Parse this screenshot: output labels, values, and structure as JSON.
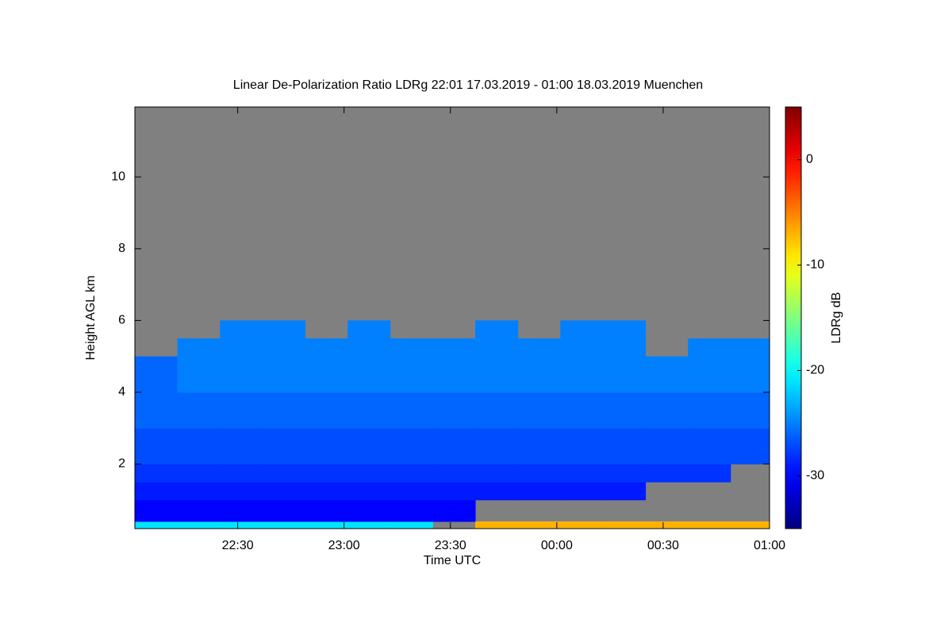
{
  "chart_data": {
    "type": "heatmap",
    "title": "Linear De-Polarization Ratio LDRg   22:01 17.03.2019 - 01:00 18.03.2019 Muenchen",
    "x_label": "Time UTC",
    "y_label": "Height AGL km",
    "colorbar_label": "LDRg dB",
    "xlim": [
      1,
      180
    ],
    "xticks": [
      {
        "value": 30,
        "label": "22:30"
      },
      {
        "value": 60,
        "label": "23:00"
      },
      {
        "value": 90,
        "label": "23:30"
      },
      {
        "value": 120,
        "label": "00:00"
      },
      {
        "value": 150,
        "label": "00:30"
      },
      {
        "value": 180,
        "label": "01:00"
      }
    ],
    "ylim": [
      0.2,
      11.95
    ],
    "yticks": [
      2,
      4,
      6,
      8,
      10
    ],
    "clim": [
      -35,
      5
    ],
    "cticks": [
      0,
      -10,
      -20,
      -30
    ],
    "colormap": "jet",
    "nan_color": "#808080",
    "x_edges": [
      1,
      13,
      25,
      37,
      49,
      61,
      73,
      85,
      97,
      109,
      121,
      133,
      145,
      157,
      169,
      180
    ],
    "y_edges": [
      0.2,
      0.4,
      1,
      1.5,
      2,
      2.5,
      3,
      3.5,
      4,
      4.5,
      5,
      5.5,
      6
    ],
    "z": [
      [
        -21,
        -21,
        -21,
        -21,
        -21,
        -21,
        -21,
        null,
        -7,
        -7,
        -7,
        -7,
        -7,
        -7,
        -7
      ],
      [
        -30,
        -30,
        -30,
        -30,
        -30,
        -30,
        -30,
        -30,
        null,
        null,
        null,
        null,
        null,
        null,
        null
      ],
      [
        -29,
        -29,
        -29,
        -29,
        -29,
        -29,
        -29,
        -29,
        -29,
        -29,
        -29,
        -29,
        null,
        null,
        null
      ],
      [
        -28,
        -28,
        -28,
        -28,
        -28,
        -28,
        -28,
        -28,
        -28,
        -28,
        -28,
        -28,
        -28,
        -28,
        null
      ],
      [
        -27,
        -27,
        -27,
        -27,
        -27,
        -27,
        -27,
        -27,
        -27,
        -27,
        -27,
        -27,
        -27,
        -27,
        -27
      ],
      [
        -27,
        -27,
        -27,
        -27,
        -27,
        -27,
        -27,
        -27,
        -27,
        -27,
        -27,
        -27,
        -27,
        -27,
        -27
      ],
      [
        -26,
        -26,
        -26,
        -26,
        -26,
        -26,
        -26,
        -26,
        -26,
        -26,
        -26,
        -26,
        -26,
        -26,
        -26
      ],
      [
        -26,
        -26,
        -26,
        -26,
        -26,
        -26,
        -26,
        -26,
        -26,
        -26,
        -26,
        -26,
        -26,
        -26,
        -26
      ],
      [
        -26,
        -25,
        -25,
        -25,
        -25,
        -25,
        -25,
        -25,
        -25,
        -25,
        -25,
        -25,
        -25,
        -25,
        -25
      ],
      [
        -26,
        -25,
        -25,
        -25,
        -25,
        -25,
        -25,
        -25,
        -25,
        -25,
        -25,
        -25,
        -25,
        -25,
        -25
      ],
      [
        null,
        -25,
        -25,
        -25,
        -25,
        -25,
        -25,
        -25,
        -25,
        -25,
        -25,
        -25,
        null,
        -25,
        -25
      ],
      [
        null,
        null,
        -25,
        -25,
        null,
        -25,
        null,
        null,
        -25,
        null,
        -25,
        -25,
        null,
        null,
        null
      ]
    ]
  }
}
